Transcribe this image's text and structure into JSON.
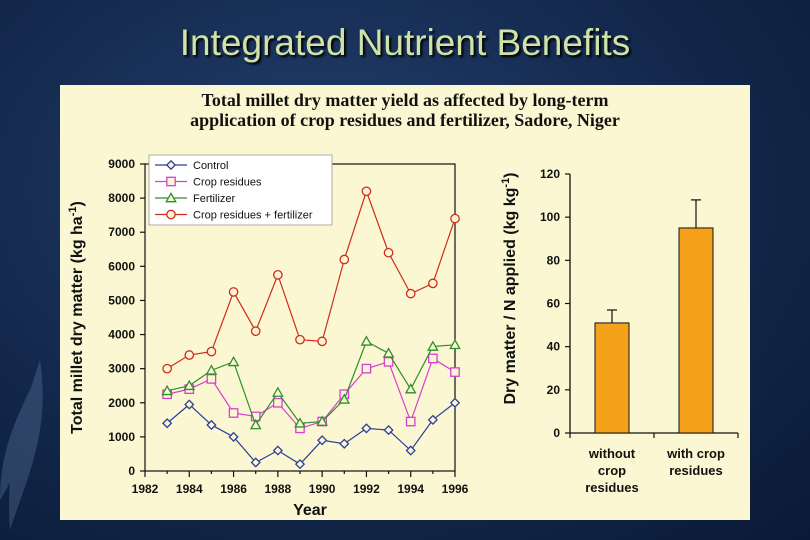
{
  "slide": {
    "title": "Integrated Nutrient Benefits"
  },
  "panel": {
    "title_line1": "Total millet dry matter yield as affected by long-term",
    "title_line2": "application of crop residues and fertilizer, Sadore, Niger"
  },
  "colors": {
    "control": "#2a3f9a",
    "crop_residues": "#d63fd0",
    "fertilizer": "#2f8f2a",
    "crop_residues_fertilizer": "#d12a1e",
    "bar": "#f5a11a"
  },
  "chart_data": [
    {
      "type": "line",
      "xlabel": "Year",
      "ylabel": "Total millet dry matter  (kg ha",
      "ylabel_sup": "-1",
      "ylabel_end": ")",
      "ylim": [
        0,
        9000
      ],
      "yticks": [
        0,
        1000,
        2000,
        3000,
        4000,
        5000,
        6000,
        7000,
        8000,
        9000
      ],
      "xlim": [
        1982,
        1996
      ],
      "xticks": [
        1982,
        1984,
        1986,
        1988,
        1990,
        1992,
        1994,
        1996
      ],
      "x": [
        1983,
        1984,
        1985,
        1986,
        1987,
        1988,
        1989,
        1990,
        1991,
        1992,
        1993,
        1994,
        1995,
        1996
      ],
      "legend_position": "top-left",
      "series": [
        {
          "name": "Control",
          "key": "control",
          "marker": "diamond",
          "values": [
            1400,
            1950,
            1350,
            1000,
            250,
            600,
            200,
            900,
            800,
            1250,
            1200,
            600,
            1500,
            2000
          ]
        },
        {
          "name": "Crop residues",
          "key": "crop_residues",
          "marker": "square",
          "values": [
            2250,
            2400,
            2700,
            1700,
            1600,
            2000,
            1250,
            1450,
            2250,
            3000,
            3200,
            1450,
            3300,
            2900
          ]
        },
        {
          "name": "Fertilizer",
          "key": "fertilizer",
          "marker": "triangle",
          "values": [
            2350,
            2500,
            2950,
            3200,
            1350,
            2300,
            1400,
            1450,
            2100,
            3800,
            3450,
            2400,
            3650,
            3700
          ]
        },
        {
          "name": "Crop residues + fertilizer",
          "key": "crop_residues_fertilizer",
          "marker": "circle",
          "values": [
            3000,
            3400,
            3500,
            5250,
            4100,
            5750,
            3850,
            3800,
            6200,
            8200,
            6400,
            5200,
            5500,
            7400
          ]
        }
      ]
    },
    {
      "type": "bar",
      "ylabel": "Dry matter / N applied (kg kg",
      "ylabel_sup": "-1",
      "ylabel_end": ")",
      "ylim": [
        0,
        120
      ],
      "yticks": [
        0,
        20,
        40,
        60,
        80,
        100,
        120
      ],
      "categories": [
        {
          "line1": "without",
          "line2": "crop",
          "line3": "residues"
        },
        {
          "line1": "with crop",
          "line2": "residues",
          "line3": ""
        }
      ],
      "values": [
        51,
        95
      ],
      "errors": [
        6,
        13
      ]
    }
  ]
}
